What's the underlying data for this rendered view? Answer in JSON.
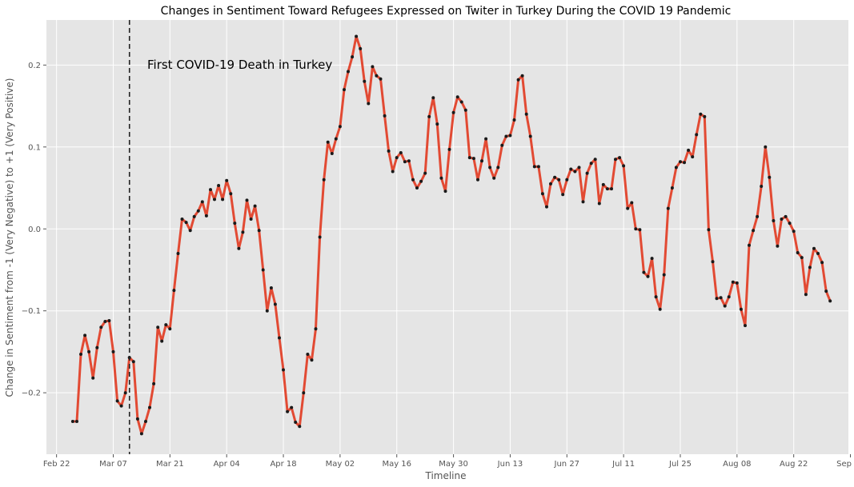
{
  "chart_data": {
    "type": "line",
    "title": "Changes in Sentiment Toward Refugees Expressed on Twiter in Turkey During the COVID 19 Pandemic",
    "xlabel": "Timeline",
    "ylabel": "Change in Sentiment from -1 (Very Negative) to +1 (Very Positive)",
    "x_tick_labels": [
      "Feb 22",
      "Mar 07",
      "Mar 21",
      "Apr 04",
      "Apr 18",
      "May 02",
      "May 16",
      "May 30",
      "Jun 13",
      "Jun 27",
      "Jul 11",
      "Jul 25",
      "Aug 08",
      "Aug 22",
      "Sep 05"
    ],
    "y_ticks": [
      -0.2,
      -0.1,
      0.0,
      0.1,
      0.2
    ],
    "y_tick_labels": [
      "−0.2",
      "−0.1",
      "0.0",
      "0.1",
      "0.2"
    ],
    "xlim_days": [
      -2.5,
      195.5
    ],
    "ylim": [
      -0.275,
      0.255
    ],
    "grid": true,
    "line_color": "#e24a33",
    "marker_color": "#1a1a1a",
    "series": [
      {
        "values": [
          -0.235,
          -0.235,
          -0.153,
          -0.13,
          -0.15,
          -0.182,
          -0.145,
          -0.12,
          -0.113,
          -0.112,
          -0.15,
          -0.21,
          -0.216,
          -0.2,
          -0.157,
          -0.162,
          -0.232,
          -0.25,
          -0.235,
          -0.218,
          -0.189,
          -0.12,
          -0.137,
          -0.117,
          -0.122,
          -0.075,
          -0.03,
          0.012,
          0.008,
          -0.002,
          0.015,
          0.022,
          0.033,
          0.016,
          0.048,
          0.036,
          0.053,
          0.036,
          0.059,
          0.043,
          0.007,
          -0.024,
          -0.004,
          0.035,
          0.012,
          0.028,
          -0.002,
          -0.05,
          -0.1,
          -0.072,
          -0.092,
          -0.133,
          -0.172,
          -0.223,
          -0.218,
          -0.236,
          -0.241,
          -0.2,
          -0.153,
          -0.16,
          -0.122,
          -0.01,
          0.06,
          0.106,
          0.092,
          0.11,
          0.125,
          0.17,
          0.192,
          0.21,
          0.235,
          0.22,
          0.18,
          0.153,
          0.198,
          0.187,
          0.183,
          0.138,
          0.095,
          0.07,
          0.087,
          0.093,
          0.082,
          0.083,
          0.06,
          0.05,
          0.058,
          0.068,
          0.137,
          0.16,
          0.128,
          0.062,
          0.046,
          0.097,
          0.142,
          0.161,
          0.155,
          0.145,
          0.087,
          0.086,
          0.06,
          0.083,
          0.11,
          0.075,
          0.062,
          0.075,
          0.102,
          0.113,
          0.114,
          0.133,
          0.182,
          0.187,
          0.14,
          0.113,
          0.076,
          0.076,
          0.043,
          0.027,
          0.055,
          0.063,
          0.06,
          0.042,
          0.06,
          0.073,
          0.07,
          0.075,
          0.033,
          0.068,
          0.08,
          0.085,
          0.031,
          0.054,
          0.049,
          0.049,
          0.085,
          0.087,
          0.077,
          0.025,
          0.032,
          0.0,
          -0.001,
          -0.053,
          -0.058,
          -0.036,
          -0.083,
          -0.098,
          -0.056,
          0.025,
          0.05,
          0.075,
          0.082,
          0.081,
          0.096,
          0.088,
          0.115,
          0.14,
          0.137,
          -0.001,
          -0.04,
          -0.085,
          -0.084,
          -0.094,
          -0.083,
          -0.065,
          -0.066,
          -0.098,
          -0.118,
          -0.02,
          -0.002,
          0.015,
          0.052,
          0.1,
          0.063,
          0.01,
          -0.021,
          0.012,
          0.015,
          0.007,
          -0.003,
          -0.029,
          -0.035,
          -0.08,
          -0.047,
          -0.024,
          -0.03,
          -0.041,
          -0.076,
          -0.088
        ]
      }
    ],
    "x_start_day": 4,
    "annotation": {
      "text": "First COVID-19 Death in Turkey",
      "x_day": 18
    }
  }
}
